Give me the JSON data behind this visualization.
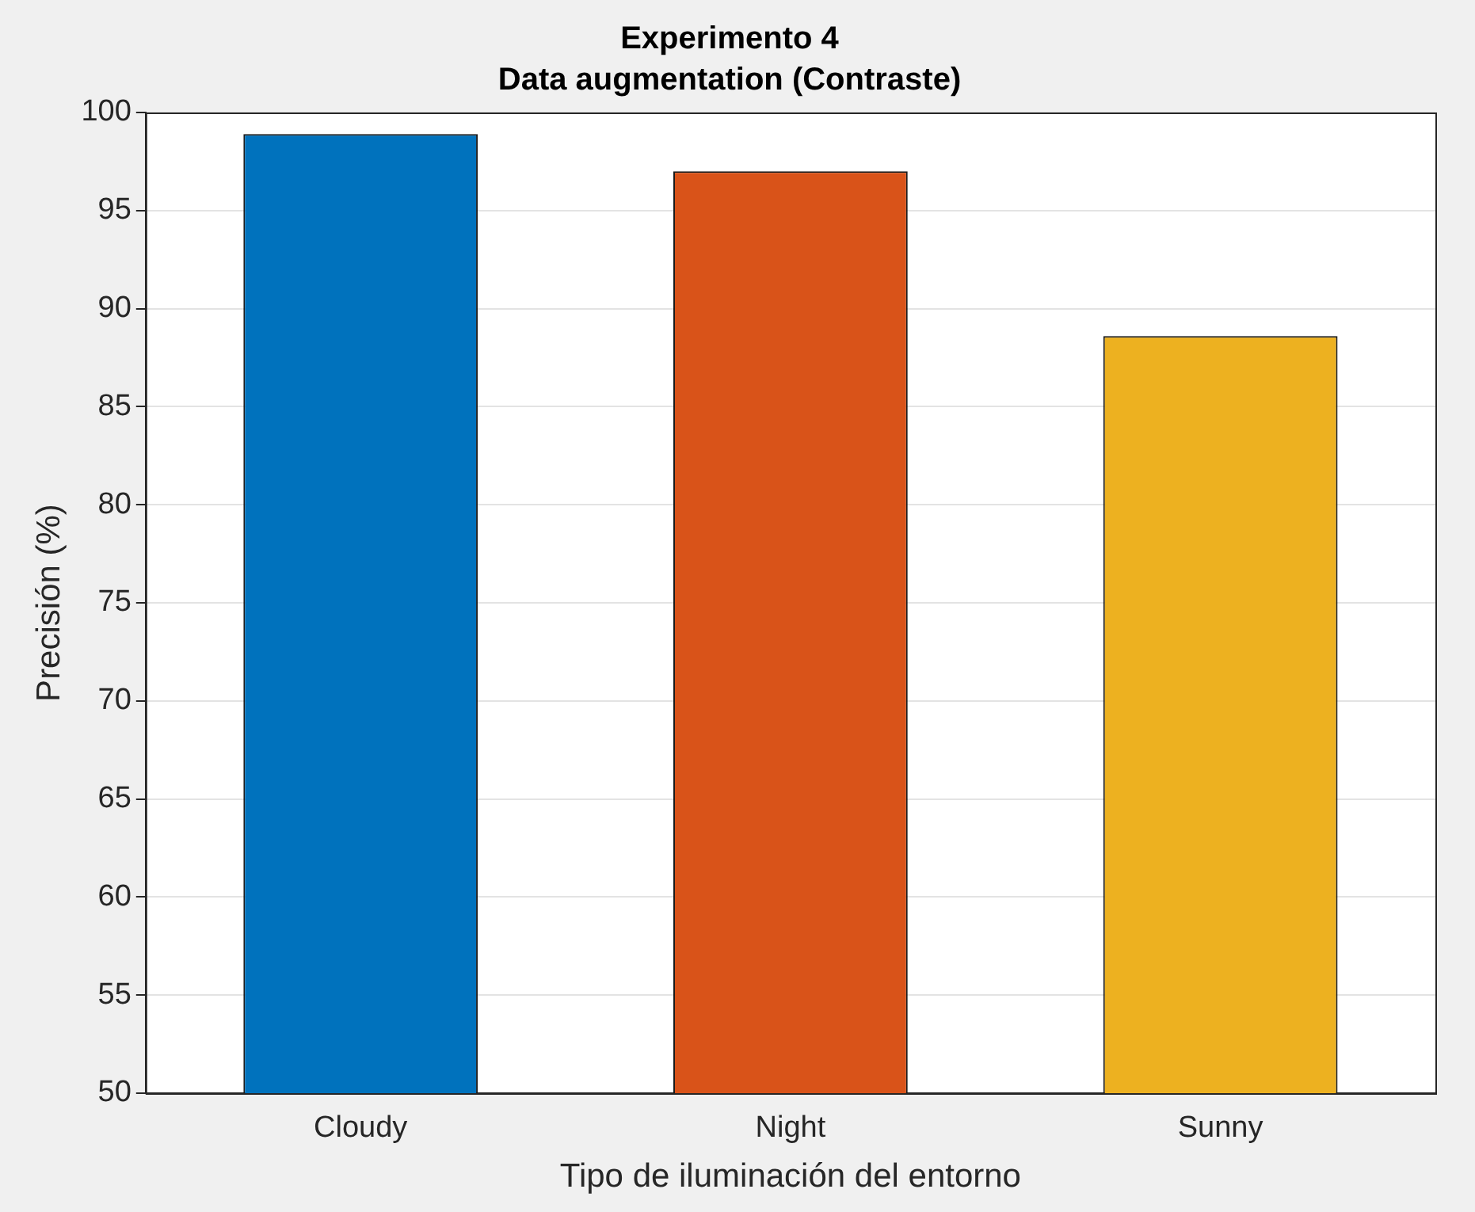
{
  "chart_data": {
    "type": "bar",
    "title": "Experimento 4",
    "subtitle": "Data augmentation (Contraste)",
    "xlabel": "Tipo de iluminación del entorno",
    "ylabel": "Precisión (%)",
    "categories": [
      "Cloudy",
      "Night",
      "Sunny"
    ],
    "values": [
      98.9,
      97.0,
      88.6
    ],
    "colors": [
      "#0072bd",
      "#d95319",
      "#edb120"
    ],
    "ylim": [
      50,
      100
    ],
    "yticks": [
      50,
      55,
      60,
      65,
      70,
      75,
      80,
      85,
      90,
      95,
      100
    ],
    "grid": "y"
  }
}
